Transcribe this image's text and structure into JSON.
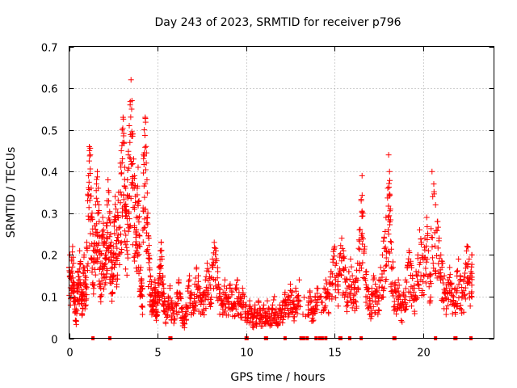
{
  "chart_data": {
    "type": "scatter",
    "title": "Day 243 of 2023, SRMTID for receiver p796",
    "xlabel": "GPS time / hours",
    "ylabel": "SRMTID / TECUs",
    "xlim": [
      0,
      24
    ],
    "ylim": [
      0,
      0.7
    ],
    "x_ticks": [
      0,
      5,
      10,
      15,
      20
    ],
    "x_tick_labels": [
      "0",
      "5",
      "10",
      "15",
      "20"
    ],
    "y_ticks": [
      0,
      0.1,
      0.2,
      0.3,
      0.4,
      0.5,
      0.6,
      0.7
    ],
    "y_tick_labels": [
      "0",
      "0.1",
      "0.2",
      "0.3",
      "0.4",
      "0.5",
      "0.6",
      "0.7"
    ],
    "grid": true,
    "marker": "+",
    "series": [
      {
        "name": "SRMTID",
        "color": "#ff0000",
        "points": [
          [
            0.0,
            0.17
          ],
          [
            0.05,
            0.2
          ],
          [
            0.1,
            0.15
          ],
          [
            0.15,
            0.19
          ],
          [
            0.2,
            0.22
          ],
          [
            0.25,
            0.18
          ],
          [
            0.3,
            0.13
          ],
          [
            0.35,
            0.09
          ],
          [
            0.4,
            0.07
          ],
          [
            0.45,
            0.12
          ],
          [
            0.5,
            0.16
          ],
          [
            0.55,
            0.14
          ],
          [
            0.6,
            0.21
          ],
          [
            0.65,
            0.18
          ],
          [
            0.7,
            0.11
          ],
          [
            0.75,
            0.1
          ],
          [
            0.8,
            0.17
          ],
          [
            0.85,
            0.2
          ],
          [
            0.9,
            0.15
          ],
          [
            0.95,
            0.13
          ],
          [
            1.0,
            0.23
          ],
          [
            1.05,
            0.33
          ],
          [
            1.1,
            0.39
          ],
          [
            1.15,
            0.45
          ],
          [
            1.2,
            0.44
          ],
          [
            1.25,
            0.36
          ],
          [
            1.3,
            0.3
          ],
          [
            1.35,
            0.25
          ],
          [
            1.4,
            0.22
          ],
          [
            1.45,
            0.27
          ],
          [
            1.5,
            0.32
          ],
          [
            1.55,
            0.37
          ],
          [
            1.6,
            0.4
          ],
          [
            1.65,
            0.36
          ],
          [
            1.7,
            0.28
          ],
          [
            1.75,
            0.21
          ],
          [
            1.8,
            0.18
          ],
          [
            1.85,
            0.24
          ],
          [
            1.9,
            0.29
          ],
          [
            1.95,
            0.26
          ],
          [
            2.0,
            0.23
          ],
          [
            2.05,
            0.2
          ],
          [
            2.1,
            0.27
          ],
          [
            2.15,
            0.33
          ],
          [
            2.2,
            0.38
          ],
          [
            2.25,
            0.35
          ],
          [
            2.3,
            0.3
          ],
          [
            2.35,
            0.25
          ],
          [
            2.4,
            0.21
          ],
          [
            2.45,
            0.17
          ],
          [
            2.5,
            0.22
          ],
          [
            2.55,
            0.28
          ],
          [
            2.6,
            0.34
          ],
          [
            2.65,
            0.31
          ],
          [
            2.7,
            0.26
          ],
          [
            2.75,
            0.29
          ],
          [
            2.8,
            0.35
          ],
          [
            2.9,
            0.42
          ],
          [
            2.95,
            0.45
          ],
          [
            3.0,
            0.5
          ],
          [
            3.05,
            0.53
          ],
          [
            3.1,
            0.47
          ],
          [
            3.15,
            0.41
          ],
          [
            3.2,
            0.36
          ],
          [
            3.25,
            0.3
          ],
          [
            3.3,
            0.38
          ],
          [
            3.35,
            0.44
          ],
          [
            3.4,
            0.51
          ],
          [
            3.45,
            0.56
          ],
          [
            3.5,
            0.62
          ],
          [
            3.55,
            0.57
          ],
          [
            3.6,
            0.49
          ],
          [
            3.65,
            0.43
          ],
          [
            3.7,
            0.39
          ],
          [
            3.75,
            0.34
          ],
          [
            3.8,
            0.29
          ],
          [
            3.85,
            0.36
          ],
          [
            3.9,
            0.41
          ],
          [
            3.95,
            0.33
          ],
          [
            4.0,
            0.22
          ],
          [
            4.05,
            0.17
          ],
          [
            4.1,
            0.14
          ],
          [
            4.15,
            0.12
          ],
          [
            4.2,
            0.44
          ],
          [
            4.25,
            0.5
          ],
          [
            4.3,
            0.53
          ],
          [
            4.35,
            0.46
          ],
          [
            4.4,
            0.38
          ],
          [
            4.45,
            0.3
          ],
          [
            4.5,
            0.24
          ],
          [
            4.55,
            0.19
          ],
          [
            4.6,
            0.15
          ],
          [
            4.65,
            0.13
          ],
          [
            4.7,
            0.11
          ],
          [
            4.75,
            0.09
          ],
          [
            4.8,
            0.12
          ],
          [
            4.85,
            0.14
          ],
          [
            4.9,
            0.1
          ],
          [
            4.95,
            0.08
          ],
          [
            5.0,
            0.11
          ],
          [
            5.05,
            0.14
          ],
          [
            5.1,
            0.17
          ],
          [
            5.15,
            0.21
          ],
          [
            5.2,
            0.23
          ],
          [
            5.25,
            0.19
          ],
          [
            5.3,
            0.15
          ],
          [
            5.35,
            0.12
          ],
          [
            5.4,
            0.09
          ],
          [
            5.5,
            0.07
          ],
          [
            5.6,
            0.1
          ],
          [
            5.7,
            0.12
          ],
          [
            5.8,
            0.09
          ],
          [
            5.9,
            0.06
          ],
          [
            6.0,
            0.08
          ],
          [
            6.1,
            0.11
          ],
          [
            6.2,
            0.14
          ],
          [
            6.3,
            0.1
          ],
          [
            6.4,
            0.07
          ],
          [
            6.5,
            0.05
          ],
          [
            6.6,
            0.08
          ],
          [
            6.7,
            0.12
          ],
          [
            6.8,
            0.15
          ],
          [
            6.9,
            0.11
          ],
          [
            7.0,
            0.08
          ],
          [
            7.1,
            0.13
          ],
          [
            7.2,
            0.17
          ],
          [
            7.3,
            0.15
          ],
          [
            7.4,
            0.12
          ],
          [
            7.5,
            0.09
          ],
          [
            7.6,
            0.11
          ],
          [
            7.7,
            0.14
          ],
          [
            7.8,
            0.18
          ],
          [
            7.9,
            0.16
          ],
          [
            8.0,
            0.12
          ],
          [
            8.1,
            0.19
          ],
          [
            8.2,
            0.23
          ],
          [
            8.3,
            0.21
          ],
          [
            8.4,
            0.16
          ],
          [
            8.5,
            0.12
          ],
          [
            8.6,
            0.09
          ],
          [
            8.7,
            0.11
          ],
          [
            8.8,
            0.14
          ],
          [
            8.9,
            0.12
          ],
          [
            9.0,
            0.1
          ],
          [
            9.1,
            0.13
          ],
          [
            9.2,
            0.11
          ],
          [
            9.3,
            0.08
          ],
          [
            9.4,
            0.12
          ],
          [
            9.5,
            0.14
          ],
          [
            9.6,
            0.11
          ],
          [
            9.7,
            0.09
          ],
          [
            9.8,
            0.12
          ],
          [
            9.9,
            0.1
          ],
          [
            10.0,
            0.08
          ],
          [
            10.1,
            0.06
          ],
          [
            10.2,
            0.09
          ],
          [
            10.3,
            0.07
          ],
          [
            10.4,
            0.05
          ],
          [
            10.5,
            0.08
          ],
          [
            10.6,
            0.06
          ],
          [
            10.7,
            0.09
          ],
          [
            10.8,
            0.07
          ],
          [
            10.9,
            0.05
          ],
          [
            11.0,
            0.08
          ],
          [
            11.1,
            0.06
          ],
          [
            11.2,
            0.09
          ],
          [
            11.3,
            0.07
          ],
          [
            11.4,
            0.05
          ],
          [
            11.5,
            0.08
          ],
          [
            11.6,
            0.1
          ],
          [
            11.7,
            0.07
          ],
          [
            11.8,
            0.05
          ],
          [
            11.9,
            0.08
          ],
          [
            12.0,
            0.06
          ],
          [
            12.1,
            0.09
          ],
          [
            12.2,
            0.11
          ],
          [
            12.3,
            0.08
          ],
          [
            12.4,
            0.1
          ],
          [
            12.5,
            0.13
          ],
          [
            12.6,
            0.11
          ],
          [
            12.7,
            0.09
          ],
          [
            12.8,
            0.12
          ],
          [
            12.9,
            0.1
          ],
          [
            13.0,
            0.14
          ],
          [
            13.5,
            0.08
          ],
          [
            13.6,
            0.11
          ],
          [
            13.7,
            0.09
          ],
          [
            13.8,
            0.07
          ],
          [
            13.9,
            0.1
          ],
          [
            14.0,
            0.12
          ],
          [
            14.2,
            0.1
          ],
          [
            14.4,
            0.12
          ],
          [
            14.5,
            0.14
          ],
          [
            14.6,
            0.11
          ],
          [
            14.7,
            0.13
          ],
          [
            14.8,
            0.16
          ],
          [
            14.9,
            0.19
          ],
          [
            15.0,
            0.22
          ],
          [
            15.1,
            0.18
          ],
          [
            15.2,
            0.15
          ],
          [
            15.3,
            0.2
          ],
          [
            15.4,
            0.24
          ],
          [
            15.5,
            0.21
          ],
          [
            15.6,
            0.17
          ],
          [
            15.7,
            0.14
          ],
          [
            15.8,
            0.16
          ],
          [
            15.9,
            0.19
          ],
          [
            16.0,
            0.15
          ],
          [
            16.1,
            0.12
          ],
          [
            16.2,
            0.14
          ],
          [
            16.3,
            0.18
          ],
          [
            16.4,
            0.26
          ],
          [
            16.5,
            0.33
          ],
          [
            16.55,
            0.39
          ],
          [
            16.6,
            0.3
          ],
          [
            16.7,
            0.22
          ],
          [
            16.8,
            0.16
          ],
          [
            16.9,
            0.12
          ],
          [
            17.0,
            0.09
          ],
          [
            17.1,
            0.12
          ],
          [
            17.2,
            0.15
          ],
          [
            17.3,
            0.13
          ],
          [
            17.4,
            0.11
          ],
          [
            17.5,
            0.14
          ],
          [
            17.6,
            0.17
          ],
          [
            17.7,
            0.2
          ],
          [
            17.8,
            0.24
          ],
          [
            17.9,
            0.29
          ],
          [
            18.0,
            0.36
          ],
          [
            18.05,
            0.44
          ],
          [
            18.1,
            0.4
          ],
          [
            18.15,
            0.31
          ],
          [
            18.2,
            0.23
          ],
          [
            18.3,
            0.17
          ],
          [
            18.4,
            0.13
          ],
          [
            18.5,
            0.11
          ],
          [
            18.6,
            0.14
          ],
          [
            18.7,
            0.1
          ],
          [
            18.8,
            0.08
          ],
          [
            18.9,
            0.11
          ],
          [
            19.0,
            0.14
          ],
          [
            19.1,
            0.17
          ],
          [
            19.2,
            0.21
          ],
          [
            19.3,
            0.18
          ],
          [
            19.4,
            0.15
          ],
          [
            19.5,
            0.12
          ],
          [
            19.6,
            0.16
          ],
          [
            19.7,
            0.2
          ],
          [
            19.8,
            0.26
          ],
          [
            19.9,
            0.23
          ],
          [
            20.0,
            0.19
          ],
          [
            20.1,
            0.24
          ],
          [
            20.2,
            0.29
          ],
          [
            20.3,
            0.21
          ],
          [
            20.4,
            0.15
          ],
          [
            20.5,
            0.4
          ],
          [
            20.6,
            0.37
          ],
          [
            20.7,
            0.32
          ],
          [
            20.8,
            0.28
          ],
          [
            20.9,
            0.24
          ],
          [
            21.0,
            0.2
          ],
          [
            21.1,
            0.18
          ],
          [
            21.2,
            0.15
          ],
          [
            21.3,
            0.12
          ],
          [
            21.4,
            0.14
          ],
          [
            21.5,
            0.17
          ],
          [
            21.6,
            0.13
          ],
          [
            21.7,
            0.1
          ],
          [
            21.8,
            0.12
          ],
          [
            21.9,
            0.16
          ],
          [
            22.0,
            0.19
          ],
          [
            22.1,
            0.15
          ],
          [
            22.2,
            0.11
          ],
          [
            22.3,
            0.14
          ],
          [
            22.4,
            0.18
          ],
          [
            22.5,
            0.22
          ],
          [
            22.6,
            0.19
          ],
          [
            22.7,
            0.16
          ],
          [
            22.75,
            0.2
          ]
        ]
      }
    ],
    "zero_line_markers_x": [
      1.35,
      2.3,
      5.7,
      5.75,
      10.0,
      10.05,
      11.1,
      11.15,
      12.2,
      13.1,
      13.25,
      13.45,
      13.95,
      14.15,
      14.3,
      14.5,
      15.3,
      15.35,
      15.85,
      16.5,
      18.35,
      18.4,
      20.7,
      21.8,
      21.85,
      22.7
    ]
  }
}
